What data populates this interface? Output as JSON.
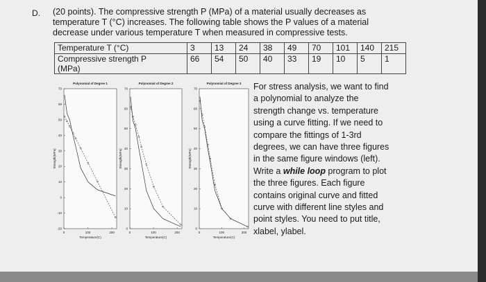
{
  "question": {
    "label": "D.",
    "lines": [
      "(20 points). The compressive strength P (MPa) of a material usually decreases as",
      "temperature T (°C) increases. The following table shows the P values of a material",
      "decrease under various temperature T when measured in compressive tests."
    ]
  },
  "table": {
    "rows": [
      [
        "Temperature T (°C)",
        3,
        13,
        24,
        38,
        49,
        70,
        101,
        140,
        215
      ],
      [
        "Compressive strength P (MPa)",
        66,
        54,
        50,
        40,
        33,
        19,
        10,
        5,
        1
      ]
    ]
  },
  "chart_data": [
    {
      "type": "line",
      "title": "Polynomial of Degree 1",
      "xlabel": "Temperature(C)",
      "ylabel": "Strength(MPa)",
      "x": [
        3,
        13,
        24,
        38,
        49,
        70,
        101,
        140,
        215
      ],
      "xlim": [
        0,
        220
      ],
      "xticks": [
        0,
        100,
        200
      ],
      "ylim": [
        -20,
        70
      ],
      "yticks": [
        -20,
        -10,
        0,
        10,
        20,
        30,
        40,
        50,
        60,
        70
      ],
      "series": [
        {
          "color": "#333333",
          "linestyle": "solid",
          "values": [
            66,
            54,
            50,
            40,
            33,
            19,
            10,
            5,
            1
          ]
        },
        {
          "color": "#555555",
          "linestyle": "dashed",
          "marker": "circle",
          "values": [
            52.2,
            49.1,
            45.8,
            41.5,
            38.1,
            31.7,
            22.2,
            10.3,
            -12.7
          ]
        }
      ]
    },
    {
      "type": "line",
      "title": "Polynomial of Degree 2",
      "xlabel": "Temperature(C)",
      "ylabel": "Strength(MPa)",
      "x": [
        3,
        13,
        24,
        38,
        49,
        70,
        101,
        140,
        215
      ],
      "xlim": [
        0,
        220
      ],
      "xticks": [
        0,
        100,
        200
      ],
      "ylim": [
        0,
        70
      ],
      "yticks": [
        0,
        10,
        20,
        30,
        40,
        50,
        60,
        70
      ],
      "series": [
        {
          "color": "#333333",
          "linestyle": "solid",
          "values": [
            66,
            54,
            50,
            40,
            33,
            19,
            10,
            5,
            1
          ]
        },
        {
          "color": "#555555",
          "linestyle": "dashed",
          "marker": "circle",
          "values": [
            61,
            56,
            52,
            46,
            41,
            32,
            21,
            11,
            2
          ]
        }
      ]
    },
    {
      "type": "line",
      "title": "Polynomial of Degree 3",
      "xlabel": "Temperature(C)",
      "ylabel": "Strength(MPa)",
      "x": [
        3,
        13,
        24,
        38,
        49,
        70,
        101,
        140,
        215
      ],
      "xlim": [
        0,
        220
      ],
      "xticks": [
        0,
        100,
        200
      ],
      "ylim": [
        0,
        70
      ],
      "yticks": [
        0,
        10,
        20,
        30,
        40,
        50,
        60,
        70
      ],
      "series": [
        {
          "color": "#333333",
          "linestyle": "solid",
          "values": [
            66,
            54,
            50,
            40,
            33,
            19,
            10,
            5,
            1
          ]
        },
        {
          "color": "#555555",
          "linestyle": "dashed",
          "marker": "circle",
          "values": [
            64,
            57,
            51,
            42,
            35,
            22,
            10,
            5,
            1
          ]
        }
      ]
    }
  ],
  "side_text": {
    "lines": [
      [
        "For stress analysis, we want to find"
      ],
      [
        "a polynomial to analyze the"
      ],
      [
        "strength change vs. temperature"
      ],
      [
        "using a curve fitting. If we need to"
      ],
      [
        "compare the fittings of 1-3rd"
      ],
      [
        "degrees, we can have three figures"
      ],
      [
        "in the same figure windows (left)."
      ],
      [
        "Write a ",
        "while loop",
        " program to plot"
      ],
      [
        "the three figures. Each figure"
      ],
      [
        "contains original curve and fitted"
      ],
      [
        "curve with different line styles and"
      ],
      [
        "point styles. You need to put title,"
      ],
      [
        "xlabel, ylabel."
      ]
    ]
  }
}
